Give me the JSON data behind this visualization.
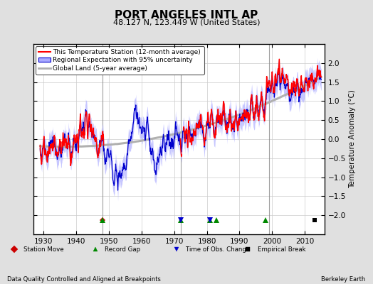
{
  "title": "PORT ANGELES INTL AP",
  "subtitle": "48.127 N, 123.449 W (United States)",
  "ylabel": "Temperature Anomaly (°C)",
  "xlabel_left": "Data Quality Controlled and Aligned at Breakpoints",
  "xlabel_right": "Berkeley Earth",
  "ylim": [
    -2.5,
    2.5
  ],
  "xlim": [
    1927,
    2016
  ],
  "yticks": [
    -2,
    -1.5,
    -1,
    -0.5,
    0,
    0.5,
    1,
    1.5,
    2
  ],
  "xticks": [
    1930,
    1940,
    1950,
    1960,
    1970,
    1980,
    1990,
    2000,
    2010
  ],
  "background_color": "#e0e0e0",
  "plot_bg_color": "#ffffff",
  "station_color": "#ff0000",
  "regional_color": "#0000cc",
  "regional_fill_color": "#aaaaff",
  "global_color": "#b0b0b0",
  "grid_color": "#cccccc",
  "vline_color": "#888888",
  "vline_years": [
    1948,
    1972,
    1999
  ],
  "record_gap_years": [
    1948,
    1972,
    1981,
    1983,
    1998
  ],
  "station_move_years": [
    1948
  ],
  "obs_change_years": [
    1972,
    1981
  ],
  "empirical_break_years": [
    2013
  ],
  "legend_labels": [
    "This Temperature Station (12-month average)",
    "Regional Expectation with 95% uncertainty",
    "Global Land (5-year average)"
  ],
  "marker_legend": [
    {
      "marker": "D",
      "color": "#cc0000",
      "label": "Station Move"
    },
    {
      "marker": "^",
      "color": "#008800",
      "label": "Record Gap"
    },
    {
      "marker": "v",
      "color": "#0000cc",
      "label": "Time of Obs. Change"
    },
    {
      "marker": "s",
      "color": "#000000",
      "label": "Empirical Break"
    }
  ]
}
